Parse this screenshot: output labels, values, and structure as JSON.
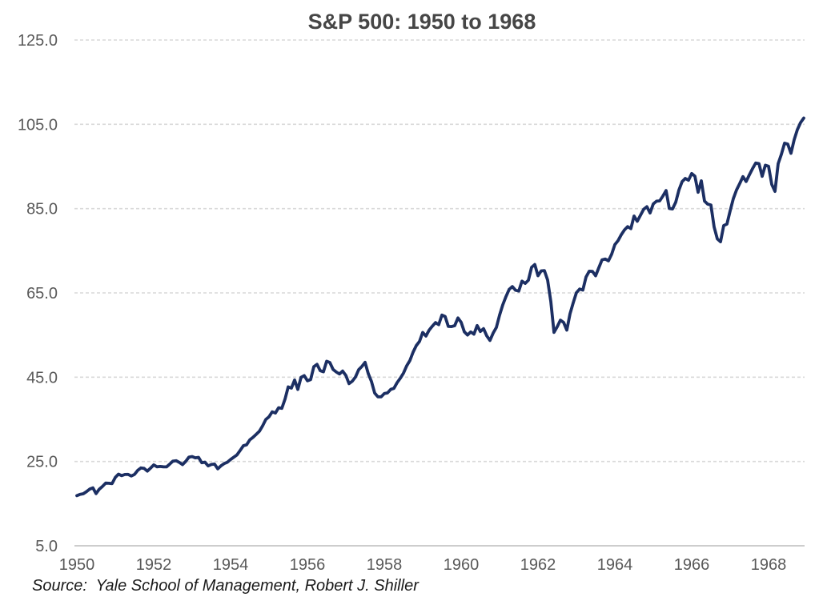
{
  "chart_data": {
    "type": "line",
    "title": "S&P 500: 1950 to 1968",
    "source_note": "Source:  Yale School of Management, Robert J. Shiller",
    "legend": "none",
    "grid": "horizontal-dashed",
    "ylim": [
      5,
      125
    ],
    "y_tick_labels": [
      "125.0",
      "105.0",
      "85.0",
      "65.0",
      "45.0",
      "25.0",
      "5.0"
    ],
    "y_tick_values": [
      125,
      105,
      85,
      65,
      45,
      25,
      5
    ],
    "x_tick_labels": [
      "1950",
      "1952",
      "1954",
      "1956",
      "1958",
      "1960",
      "1962",
      "1964",
      "1966",
      "1968"
    ],
    "x_tick_years": [
      1950,
      1952,
      1954,
      1956,
      1958,
      1960,
      1962,
      1964,
      1966,
      1968
    ],
    "frequency": "monthly",
    "start_year": 1950,
    "end_year": 1968,
    "line_color": "#1c2f63",
    "grid_color": "#d9d9d9",
    "axis_line_color": "#c6c6c6",
    "tick_text_color": "#595959",
    "title_color": "#464646",
    "series": [
      {
        "name": "S&P 500",
        "start": "1950-01",
        "values": [
          16.88,
          17.21,
          17.35,
          17.84,
          18.44,
          18.74,
          17.38,
          18.43,
          19.08,
          19.87,
          19.83,
          19.75,
          21.21,
          22.0,
          21.63,
          21.92,
          21.93,
          21.55,
          21.93,
          22.89,
          23.48,
          23.36,
          22.71,
          23.41,
          24.19,
          23.75,
          23.81,
          23.74,
          23.73,
          24.38,
          25.08,
          25.18,
          24.78,
          24.26,
          25.03,
          26.04,
          26.18,
          25.86,
          25.99,
          24.71,
          24.84,
          23.95,
          24.29,
          24.39,
          23.27,
          23.97,
          24.5,
          24.83,
          25.46,
          26.02,
          26.57,
          27.63,
          28.73,
          28.96,
          30.13,
          30.73,
          31.45,
          32.18,
          33.44,
          34.97,
          35.6,
          36.79,
          36.5,
          37.76,
          37.6,
          39.78,
          42.69,
          42.43,
          44.34,
          42.11,
          44.95,
          45.37,
          44.15,
          44.43,
          47.49,
          48.05,
          46.54,
          46.27,
          48.78,
          48.49,
          46.84,
          46.24,
          45.76,
          46.44,
          45.43,
          43.47,
          44.03,
          45.05,
          46.78,
          47.55,
          48.51,
          45.84,
          43.98,
          41.24,
          40.35,
          40.33,
          41.12,
          41.26,
          42.11,
          42.34,
          43.7,
          44.75,
          45.98,
          47.7,
          48.96,
          50.95,
          52.5,
          53.49,
          55.62,
          54.77,
          56.15,
          57.1,
          57.96,
          57.46,
          59.74,
          59.4,
          57.05,
          57.0,
          57.23,
          59.06,
          58.03,
          55.78,
          55.02,
          55.73,
          55.22,
          57.26,
          55.84,
          56.51,
          54.81,
          53.73,
          55.47,
          56.8,
          59.72,
          62.17,
          64.12,
          65.83,
          66.5,
          65.62,
          65.44,
          67.79,
          67.26,
          68.0,
          71.08,
          71.74,
          69.07,
          70.22,
          70.29,
          68.05,
          62.99,
          55.63,
          56.97,
          58.52,
          58.0,
          56.17,
          60.04,
          62.64,
          65.06,
          65.92,
          65.67,
          68.76,
          70.14,
          70.11,
          69.07,
          70.98,
          72.85,
          73.03,
          72.62,
          74.17,
          76.45,
          77.39,
          78.8,
          79.94,
          80.72,
          80.24,
          83.22,
          82.0,
          83.41,
          84.85,
          85.44,
          83.96,
          86.12,
          86.75,
          86.83,
          87.97,
          89.28,
          85.04,
          84.91,
          86.49,
          89.38,
          91.39,
          92.15,
          91.73,
          93.32,
          92.69,
          88.88,
          91.6,
          86.78,
          86.06,
          85.84,
          80.65,
          77.81,
          77.13,
          80.99,
          81.33,
          84.45,
          87.36,
          89.42,
          90.96,
          92.59,
          91.43,
          93.01,
          94.49,
          95.81,
          95.66,
          92.66,
          95.3,
          95.04,
          90.75,
          89.09,
          95.67,
          97.87,
          100.53,
          100.3,
          98.11,
          101.34,
          103.76,
          105.4,
          106.48
        ]
      }
    ]
  }
}
